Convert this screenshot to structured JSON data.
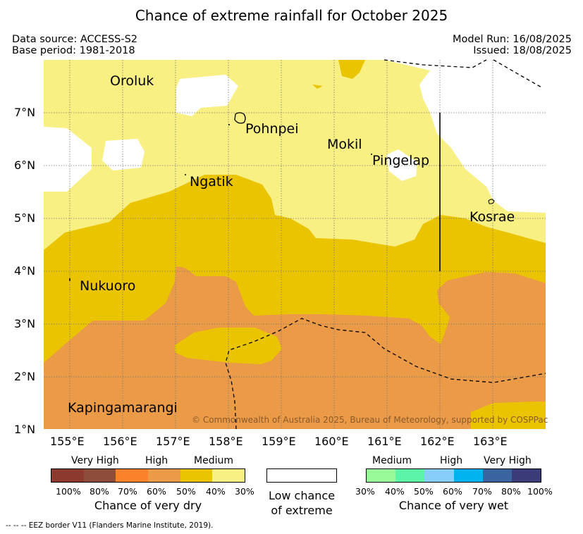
{
  "header": {
    "title": "Chance of extreme rainfall for October 2025",
    "data_source": "Data source: ACCESS-S2",
    "base_period": "Base period: 1981-2018",
    "model_run": "Model Run: 16/08/2025",
    "issued": "Issued: 18/08/2025"
  },
  "map": {
    "lon_ticks": [
      "155°E",
      "156°E",
      "157°E",
      "158°E",
      "159°E",
      "160°E",
      "161°E",
      "162°E",
      "163°E"
    ],
    "lat_ticks": [
      "1°N",
      "2°N",
      "3°N",
      "4°N",
      "5°N",
      "6°N",
      "7°N"
    ],
    "places": {
      "oroluk": "Oroluk",
      "pohnpei": "Pohnpei",
      "mokil": "Mokil",
      "pingelap": "Pingelap",
      "ngatik": "Ngatik",
      "kosrae": "Kosrae",
      "nukuoro": "Nukuoro",
      "kapingamarangi": "Kapingamarangi"
    },
    "copyright": "© Commonwealth of Australia 2025, Bureau of Meteorology, supported by COSPPac",
    "colors": {
      "dry_50_70": "#eb9a47",
      "dry_40_50": "#ebc400",
      "dry_30_40": "#f9f084",
      "low": "#ffffff"
    }
  },
  "legend": {
    "dry": {
      "levels": [
        "Very High",
        "High",
        "Medium"
      ],
      "pcts": [
        "100%",
        "80%",
        "70%",
        "60%",
        "50%",
        "40%",
        "30%"
      ],
      "colors": [
        "#8c3a2d",
        "#8e4d3a",
        "#f9822b",
        "#eb9a47",
        "#ebc400",
        "#f9f084"
      ],
      "caption": "Chance of very dry"
    },
    "low": {
      "caption_line1": "Low chance",
      "caption_line2": "of extreme"
    },
    "wet": {
      "levels": [
        "Medium",
        "High",
        "Very High"
      ],
      "pcts": [
        "30%",
        "40%",
        "50%",
        "60%",
        "70%",
        "80%",
        "100%"
      ],
      "colors": [
        "#98fb98",
        "#5cf5a8",
        "#87cefa",
        "#00b2ee",
        "#3a64a0",
        "#3b3b7a"
      ],
      "caption": "Chance of very wet"
    }
  },
  "footnote": "-- -- -- EEZ border V11 (Flanders Marine Institute, 2019)."
}
